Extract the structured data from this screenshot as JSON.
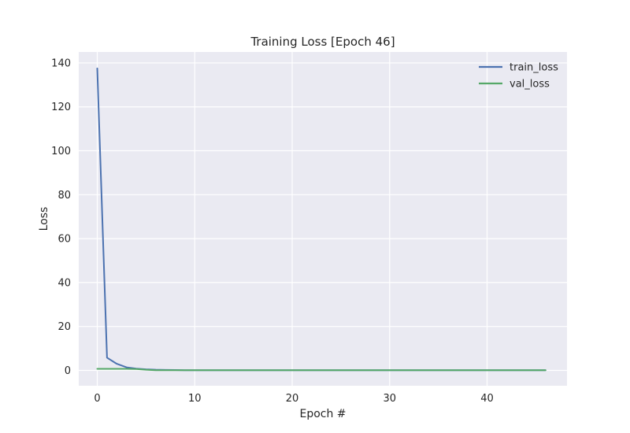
{
  "chart_data": {
    "type": "line",
    "title": "Training Loss [Epoch 46]",
    "xlabel": "Epoch #",
    "ylabel": "Loss",
    "xlim": [
      -1.9,
      48.2
    ],
    "ylim": [
      -7,
      145
    ],
    "xticks": [
      0,
      10,
      20,
      30,
      40
    ],
    "yticks": [
      0,
      20,
      40,
      60,
      80,
      100,
      120,
      140
    ],
    "grid": true,
    "legend_position": "top-right",
    "x": [
      0,
      1,
      2,
      3,
      4,
      5,
      6,
      7,
      8,
      9,
      10,
      11,
      12,
      13,
      14,
      15,
      16,
      17,
      18,
      19,
      20,
      21,
      22,
      23,
      24,
      25,
      26,
      27,
      28,
      29,
      30,
      31,
      32,
      33,
      34,
      35,
      36,
      37,
      38,
      39,
      40,
      41,
      42,
      43,
      44,
      45,
      46
    ],
    "series": [
      {
        "name": "train_loss",
        "color": "#4c72b0",
        "values": [
          137.5,
          5.8,
          3.0,
          1.4,
          0.8,
          0.5,
          0.3,
          0.2,
          0.15,
          0.1,
          0.1,
          0.1,
          0.1,
          0.1,
          0.1,
          0.1,
          0.1,
          0.1,
          0.1,
          0.1,
          0.1,
          0.1,
          0.1,
          0.1,
          0.1,
          0.1,
          0.1,
          0.1,
          0.1,
          0.1,
          0.1,
          0.1,
          0.1,
          0.1,
          0.1,
          0.1,
          0.1,
          0.1,
          0.1,
          0.1,
          0.1,
          0.1,
          0.1,
          0.1,
          0.1,
          0.1,
          0.1
        ]
      },
      {
        "name": "val_loss",
        "color": "#55a868",
        "values": [
          0.7,
          0.7,
          0.7,
          0.7,
          0.6,
          0.3,
          0.1,
          0.1,
          0.1,
          0.1,
          0.1,
          0.1,
          0.1,
          0.1,
          0.1,
          0.1,
          0.1,
          0.1,
          0.1,
          0.1,
          0.1,
          0.1,
          0.1,
          0.1,
          0.1,
          0.1,
          0.1,
          0.1,
          0.1,
          0.1,
          0.1,
          0.1,
          0.1,
          0.1,
          0.1,
          0.1,
          0.1,
          0.1,
          0.1,
          0.1,
          0.1,
          0.1,
          0.1,
          0.1,
          0.1,
          0.1,
          0.1
        ]
      }
    ]
  }
}
